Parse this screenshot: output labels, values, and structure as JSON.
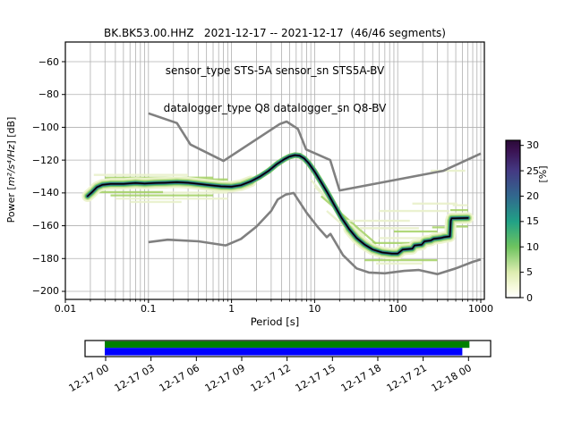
{
  "title": {
    "line1": "BK.BK53.00.HHZ   2021-12-17 -- 2021-12-17  (46/46 segments)",
    "line2": "sensor_type STS-5A sensor_sn STS5A-BV",
    "line3": "datalogger_type Q8 datalogger_sn Q8-BV"
  },
  "axes": {
    "xlabel": "Period [s]",
    "ylabel_prefix": "Power [",
    "ylabel_math": "m²/s⁴/Hz",
    "ylabel_suffix": "] [dB]",
    "x_ticks": [
      {
        "value": 0.01,
        "label": "0.01"
      },
      {
        "value": 0.1,
        "label": "0.1"
      },
      {
        "value": 1,
        "label": "1"
      },
      {
        "value": 10,
        "label": "10"
      },
      {
        "value": 100,
        "label": "100"
      },
      {
        "value": 1000,
        "label": "1000"
      }
    ],
    "y_ticks": [
      {
        "value": -60,
        "label": "−60"
      },
      {
        "value": -80,
        "label": "−80"
      },
      {
        "value": -100,
        "label": "−100"
      },
      {
        "value": -120,
        "label": "−120"
      },
      {
        "value": -140,
        "label": "−140"
      },
      {
        "value": -160,
        "label": "−160"
      },
      {
        "value": -180,
        "label": "−180"
      },
      {
        "value": -200,
        "label": "−200"
      }
    ]
  },
  "colorbar": {
    "label": "[%]",
    "ticks": [
      0,
      5,
      10,
      15,
      20,
      25,
      30
    ],
    "vmax": 31,
    "gradient": [
      {
        "v": 0,
        "c": "#ffffff"
      },
      {
        "v": 2,
        "c": "#f7fade"
      },
      {
        "v": 5,
        "c": "#ddecb0"
      },
      {
        "v": 10,
        "c": "#6ec35f"
      },
      {
        "v": 15,
        "c": "#21a186"
      },
      {
        "v": 20,
        "c": "#31688e"
      },
      {
        "v": 25,
        "c": "#443983"
      },
      {
        "v": 29,
        "c": "#3a1252"
      },
      {
        "v": 31,
        "c": "#2a0a36"
      }
    ]
  },
  "chart_data": {
    "type": "heatmap",
    "title": "BK.BK53.00.HHZ 2021-12-17 -- 2021-12-17 (46/46 segments)",
    "xlabel": "Period [s]",
    "ylabel": "Power [m²/s⁴/Hz] [dB]",
    "xscale": "log",
    "xlim": [
      0.01,
      1100
    ],
    "ylim": [
      -205,
      -48
    ],
    "grid": true,
    "colorbar_range": [
      0,
      31
    ],
    "colorbar_label": "[%]",
    "series": [
      {
        "name": "psd-mode",
        "color": "#000000",
        "x": [
          0.0185,
          0.021,
          0.024,
          0.028,
          0.035,
          0.05,
          0.07,
          0.09,
          0.12,
          0.16,
          0.22,
          0.3,
          0.4,
          0.55,
          0.75,
          1.0,
          1.3,
          1.7,
          2.2,
          2.8,
          3.5,
          4.3,
          5.0,
          5.8,
          6.6,
          7.5,
          8.5,
          10,
          12,
          14.5,
          17.5,
          21,
          26,
          32,
          40,
          50,
          65,
          85,
          100,
          115,
          150,
          160,
          195,
          210,
          250,
          270,
          330,
          360,
          425,
          435,
          445,
          700
        ],
        "y": [
          -142,
          -139.5,
          -136.5,
          -135,
          -134.5,
          -134.5,
          -134,
          -134.3,
          -134,
          -133.8,
          -133.5,
          -133.8,
          -134.5,
          -135.3,
          -136,
          -136.2,
          -135.3,
          -133,
          -130,
          -126.5,
          -122.5,
          -119.5,
          -117.8,
          -117,
          -117.3,
          -119,
          -122,
          -127,
          -133.5,
          -140.5,
          -148,
          -155,
          -162,
          -167.5,
          -171.5,
          -174.5,
          -176.3,
          -177,
          -177,
          -174.5,
          -174,
          -172,
          -171.5,
          -169.5,
          -169,
          -168,
          -167.5,
          -167,
          -166.5,
          -157,
          -155.5,
          -155.3
        ]
      },
      {
        "name": "noise-model-high",
        "color": "#808080",
        "x": [
          0.1,
          0.22,
          0.32,
          0.8,
          3.8,
          4.6,
          6.3,
          7.9,
          15.4,
          20,
          354.8,
          1000
        ],
        "y": [
          -91.5,
          -97.4,
          -110.5,
          -120.5,
          -98,
          -96.5,
          -101,
          -113.5,
          -120,
          -138.5,
          -126.5,
          -116
        ]
      },
      {
        "name": "noise-model-low",
        "color": "#808080",
        "x": [
          0.1,
          0.17,
          0.4,
          0.85,
          1.3,
          2.0,
          3.0,
          3.6,
          4.5,
          5.6,
          8,
          11,
          14,
          15.5,
          22,
          32,
          45,
          70,
          120,
          180,
          300,
          500,
          800,
          1000
        ],
        "y": [
          -170,
          -168.5,
          -169.5,
          -172,
          -168,
          -160.5,
          -151,
          -144,
          -141,
          -140,
          -152,
          -161,
          -167,
          -165,
          -178,
          -186,
          -188.5,
          -189,
          -187.5,
          -187,
          -189.5,
          -186,
          -182,
          -180.5
        ]
      }
    ],
    "band_wide_ranges": [
      [
        0.0185,
        1.7
      ],
      [
        25,
        700
      ]
    ],
    "histogram_streaks": [
      [
        0.022,
        0.3,
        -129,
        -129,
        1
      ],
      [
        0.03,
        0.6,
        -130.7,
        -130.7,
        2
      ],
      [
        0.025,
        0.15,
        -139.5,
        -139.5,
        2
      ],
      [
        0.035,
        0.6,
        -141.5,
        -141.5,
        2
      ],
      [
        0.04,
        0.9,
        -143.5,
        -143.5,
        1
      ],
      [
        0.06,
        0.25,
        -145.5,
        -145.5,
        1
      ],
      [
        0.15,
        0.9,
        -139.8,
        -139.8,
        1
      ],
      [
        0.3,
        0.9,
        -131.8,
        -131.8,
        2
      ],
      [
        9,
        28,
        -132,
        -160,
        1
      ],
      [
        10,
        40,
        -136,
        -167,
        1
      ],
      [
        12,
        55,
        -142,
        -171,
        2
      ],
      [
        14,
        34,
        -151,
        -168,
        1
      ],
      [
        20,
        140,
        -157,
        -157,
        1
      ],
      [
        35,
        180,
        -161.5,
        -161.5,
        1
      ],
      [
        60,
        420,
        -151,
        -151,
        1
      ],
      [
        150,
        520,
        -146.5,
        -146.5,
        1
      ],
      [
        250,
        650,
        -126.5,
        -126.5,
        1
      ],
      [
        90,
        300,
        -163.5,
        -163.5,
        2
      ],
      [
        260,
        430,
        -161,
        -161,
        2
      ],
      [
        50,
        260,
        -170.5,
        -170.5,
        2
      ],
      [
        60,
        300,
        -167.5,
        -167.5,
        1
      ],
      [
        40,
        300,
        -181,
        -181,
        2
      ],
      [
        55,
        200,
        -183,
        -183,
        1
      ],
      [
        430,
        700,
        -150.5,
        -150.5,
        2
      ],
      [
        430,
        700,
        -160.5,
        -160.5,
        2
      ],
      [
        460,
        700,
        -147.5,
        -147.5,
        1
      ]
    ]
  },
  "timeline": {
    "tick_labels": [
      "12-17 00",
      "12-17 03",
      "12-17 06",
      "12-17 09",
      "12-17 12",
      "12-17 15",
      "12-17 18",
      "12-17 21",
      "12-18 00"
    ],
    "hours_span": 24,
    "bars": [
      {
        "name": "coverage-bar-green",
        "color": "#008000",
        "start": 0,
        "end": 24.12
      },
      {
        "name": "coverage-bar-blue",
        "color": "#0000ff",
        "start": 0,
        "end": 23.65
      }
    ]
  }
}
